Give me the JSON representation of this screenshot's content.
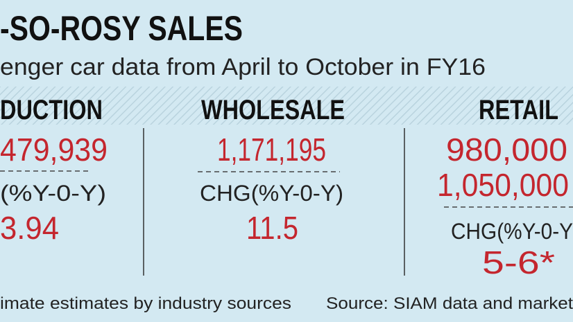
{
  "header": {
    "title": "-SO-ROSY SALES",
    "subtitle": "enger car data from April to October in FY16"
  },
  "columns": [
    {
      "header": "DUCTION",
      "figures": [
        "479,939"
      ],
      "change_label": "(%Y-0-Y)",
      "change": "3.94"
    },
    {
      "header": "WHOLESALE",
      "figures": [
        "1,171,195"
      ],
      "change_label": "CHG(%Y-0-Y)",
      "change": "11.5"
    },
    {
      "header": "RETAIL",
      "figures": [
        "980,000",
        "1,050,000"
      ],
      "change_label": "CHG(%Y-0-Y",
      "change": "5-6*"
    }
  ],
  "footer": {
    "note": "imate estimates by industry sources",
    "source": "Source: SIAM data and market"
  }
}
